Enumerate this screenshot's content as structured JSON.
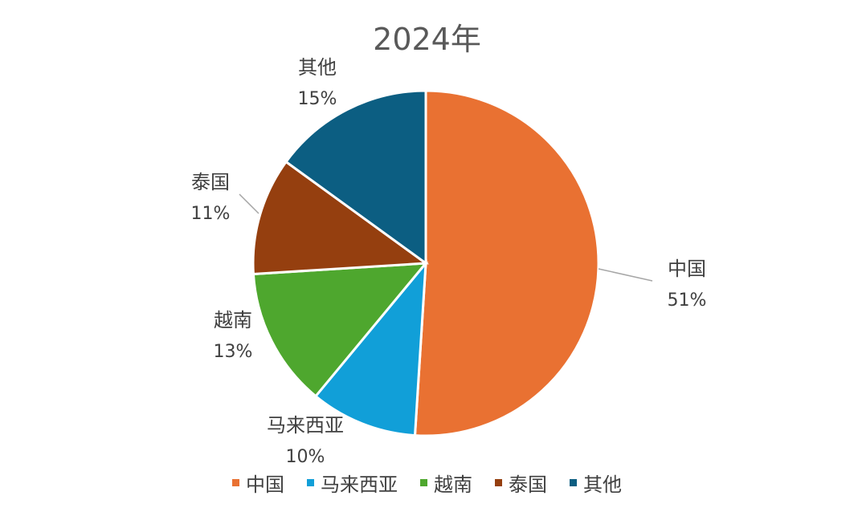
{
  "chart_data": {
    "type": "pie",
    "title": "2024年",
    "slices": [
      {
        "label": "中国",
        "value": 51,
        "value_label": "51%",
        "color": "#E97132"
      },
      {
        "label": "马来西亚",
        "value": 10,
        "value_label": "10%",
        "color": "#119FD8"
      },
      {
        "label": "越南",
        "value": 13,
        "value_label": "13%",
        "color": "#4EA72E"
      },
      {
        "label": "泰国",
        "value": 11,
        "value_label": "11%",
        "color": "#953F0F"
      },
      {
        "label": "其他",
        "value": 15,
        "value_label": "15%",
        "color": "#0C5E82"
      }
    ],
    "legend_position": "bottom"
  }
}
